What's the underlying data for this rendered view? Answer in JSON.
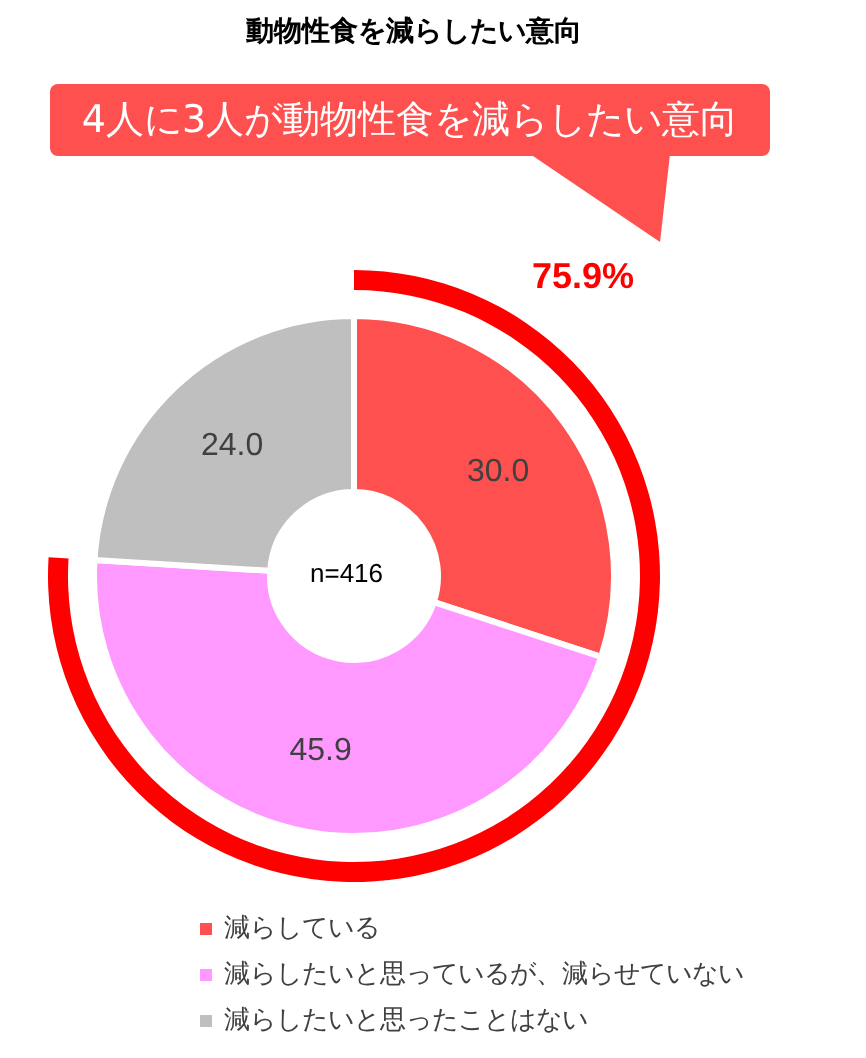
{
  "chart_data": {
    "type": "donut",
    "title": "動物性食を減らしたい意向",
    "categories": [
      "減らしている",
      "減らしたいと思っているが、減らせていない",
      "減らしたいと思ったことはない"
    ],
    "values": [
      30.0,
      45.9,
      24.0
    ],
    "value_labels": [
      "30.0",
      "45.9",
      "24.0"
    ],
    "colors": [
      "#ff5050",
      "#ff99ff",
      "#bfbfbf"
    ],
    "annotations": [
      "4人に3人が動物性食を減らしたい意向",
      "75.9%",
      "n=416"
    ],
    "legend": "bottom"
  }
}
